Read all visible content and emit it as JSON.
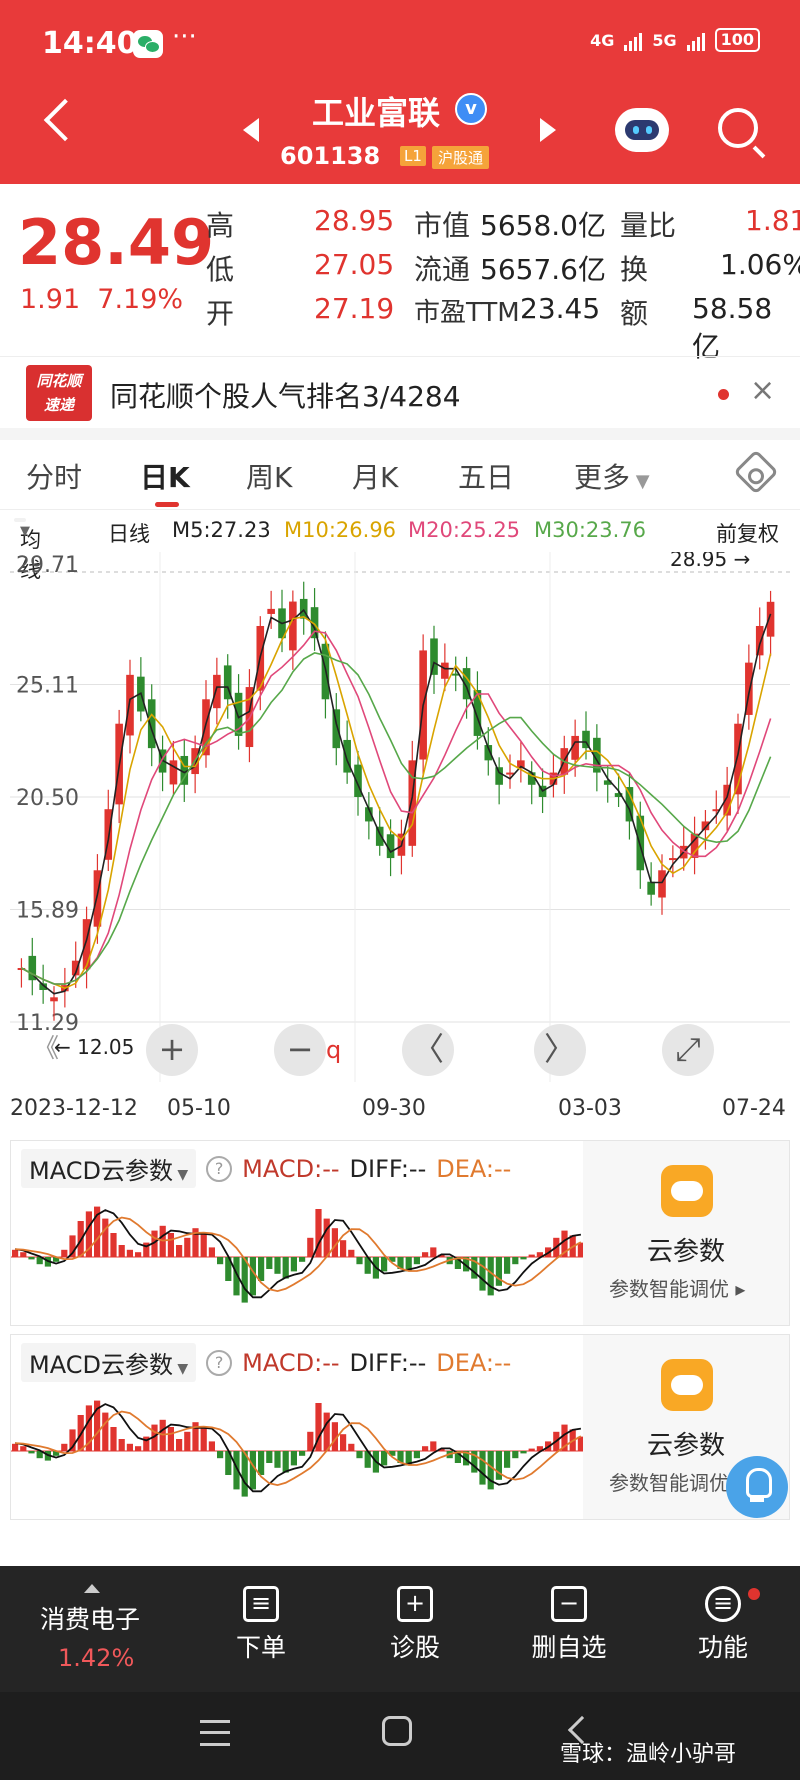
{
  "status_bar": {
    "time": "14:40",
    "dots": "···",
    "net1": "4G",
    "net2": "5G",
    "battery": "100"
  },
  "header": {
    "stock_name": "工业富联",
    "stock_code": "601138",
    "tag_l1": "L1",
    "tag_market": "沪股通"
  },
  "quote": {
    "last_price": "28.49",
    "change": "1.91",
    "change_pct": "7.19%",
    "labels": {
      "high": "高",
      "low": "低",
      "open": "开",
      "mcap": "市值",
      "float": "流通",
      "pe": "市盈TTM",
      "vol_ratio": "量比",
      "turnover": "换",
      "amount": "额"
    },
    "values": {
      "high": "28.95",
      "low": "27.05",
      "open": "27.19",
      "mcap": "5658.0亿",
      "float": "5657.6亿",
      "pe": "23.45",
      "vol_ratio": "1.81",
      "turnover": "1.06%",
      "amount": "58.58亿"
    }
  },
  "hot_rank": {
    "logo_line1": "同花顺",
    "logo_line2": "速递",
    "text": "同花顺个股人气排名3/4284",
    "close": "×"
  },
  "tabs": [
    "分时",
    "日K",
    "周K",
    "月K",
    "五日",
    "更多"
  ],
  "ma_row": {
    "mode": "均线",
    "period": "日线",
    "m5": "M5:27.23",
    "m10": "M10:26.96",
    "m20": "M20:25.25",
    "m30": "M30:23.76",
    "adjust": "前复权"
  },
  "colors": {
    "m5": "#222222",
    "m10": "#d9a400",
    "m20": "#e0487a",
    "m30": "#57a84a",
    "up": "#e0342f",
    "down": "#2e8b2e",
    "dif": "#111111",
    "dea": "#e07a2f"
  },
  "chart_data": {
    "type": "candlestick",
    "y_ticks": [
      "29.71",
      "25.11",
      "20.50",
      "15.89",
      "11.29"
    ],
    "ylim": [
      11.29,
      29.71
    ],
    "high_marker": "28.95",
    "low_marker": "12.05",
    "x_ticks": [
      "2023-12-12",
      "05-10",
      "09-30",
      "03-03",
      "07-24"
    ],
    "close_series": [
      13.5,
      13.0,
      12.6,
      12.3,
      12.8,
      13.8,
      15.5,
      17.5,
      20.0,
      23.5,
      25.5,
      24.0,
      22.5,
      21.5,
      22.0,
      21.0,
      22.5,
      24.5,
      25.5,
      24.5,
      23.0,
      25.0,
      27.5,
      28.2,
      27.0,
      28.5,
      27.8,
      27.0,
      24.5,
      22.5,
      21.5,
      20.5,
      19.5,
      18.5,
      18.0,
      19.0,
      22.0,
      26.5,
      25.5,
      26.0,
      25.5,
      24.5,
      23.0,
      22.0,
      21.0,
      21.5,
      22.0,
      21.0,
      20.5,
      21.5,
      22.5,
      23.0,
      22.5,
      21.5,
      21.0,
      20.5,
      19.5,
      17.5,
      16.5,
      17.5,
      18.0,
      18.5,
      19.0,
      19.5,
      20.0,
      21.0,
      23.5,
      26.0,
      27.5,
      28.49
    ]
  },
  "controls": {
    "left": "《",
    "plus": "+",
    "minus": "−",
    "q": "q",
    "prev": "〈",
    "next": "〉",
    "full": "⤢"
  },
  "macd_panels": [
    {
      "select": "MACD云参数",
      "help": "?",
      "macd": "MACD:--",
      "diff": "DIFF:--",
      "dea": "DEA:--",
      "cloud_title": "云参数",
      "cloud_sub": "参数智能调优 ▸"
    },
    {
      "select": "MACD云参数",
      "help": "?",
      "macd": "MACD:--",
      "diff": "DIFF:--",
      "dea": "DEA:--",
      "cloud_title": "云参数",
      "cloud_sub": "参数智能调优 ▸"
    }
  ],
  "macd_data": {
    "bars": [
      0.3,
      0.2,
      -0.1,
      -0.3,
      -0.4,
      -0.2,
      0.3,
      0.9,
      1.5,
      1.9,
      2.1,
      1.6,
      1.0,
      0.5,
      0.3,
      0.2,
      0.6,
      1.1,
      1.3,
      1.0,
      0.5,
      0.8,
      1.2,
      1.0,
      0.4,
      -0.3,
      -1.0,
      -1.6,
      -1.9,
      -1.6,
      -1.0,
      -0.5,
      -0.7,
      -0.9,
      -0.6,
      -0.2,
      0.8,
      2.0,
      1.6,
      1.2,
      0.7,
      0.3,
      -0.3,
      -0.7,
      -0.9,
      -0.6,
      -0.2,
      -0.5,
      -0.6,
      -0.3,
      0.2,
      0.4,
      0.1,
      -0.3,
      -0.5,
      -0.6,
      -0.9,
      -1.4,
      -1.6,
      -1.2,
      -0.7,
      -0.3,
      -0.1,
      0.1,
      0.2,
      0.4,
      0.8,
      1.1,
      0.9,
      0.6
    ]
  },
  "bottom_nav": {
    "sector_name": "消费电子",
    "sector_pct": "1.42%",
    "items": [
      "下单",
      "诊股",
      "删自选",
      "功能"
    ]
  },
  "watermark": "雪球：温岭小驴哥"
}
